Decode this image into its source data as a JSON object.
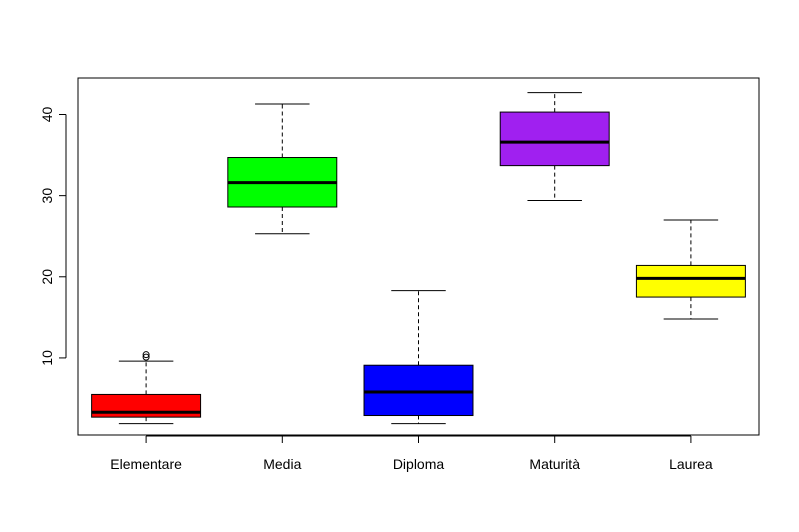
{
  "chart_data": {
    "type": "boxplot",
    "title": "",
    "xlabel": "",
    "ylabel": "",
    "categories": [
      "Elementare",
      "Media",
      "Diploma",
      "Maturità",
      "Laurea"
    ],
    "yticks": [
      10,
      20,
      30,
      40
    ],
    "ylim": [
      0.5,
      44.5
    ],
    "grid": false,
    "boxes": [
      {
        "category": "Elementare",
        "color": "#ff0000",
        "whisker_low": 1.9,
        "q1": 2.7,
        "median": 3.3,
        "q3": 5.5,
        "whisker_high": 9.6,
        "outliers": [
          10.1,
          10.4
        ]
      },
      {
        "category": "Media",
        "color": "#00ff00",
        "whisker_low": 25.3,
        "q1": 28.6,
        "median": 31.6,
        "q3": 34.7,
        "whisker_high": 41.3,
        "outliers": []
      },
      {
        "category": "Diploma",
        "color": "#0000ff",
        "whisker_low": 1.9,
        "q1": 2.9,
        "median": 5.8,
        "q3": 9.1,
        "whisker_high": 18.3,
        "outliers": []
      },
      {
        "category": "Maturità",
        "color": "#a020f0",
        "whisker_low": 29.4,
        "q1": 33.7,
        "median": 36.6,
        "q3": 40.3,
        "whisker_high": 42.7,
        "outliers": []
      },
      {
        "category": "Laurea",
        "color": "#ffff00",
        "whisker_low": 14.8,
        "q1": 17.5,
        "median": 19.8,
        "q3": 21.4,
        "whisker_high": 27.0,
        "outliers": []
      }
    ]
  }
}
